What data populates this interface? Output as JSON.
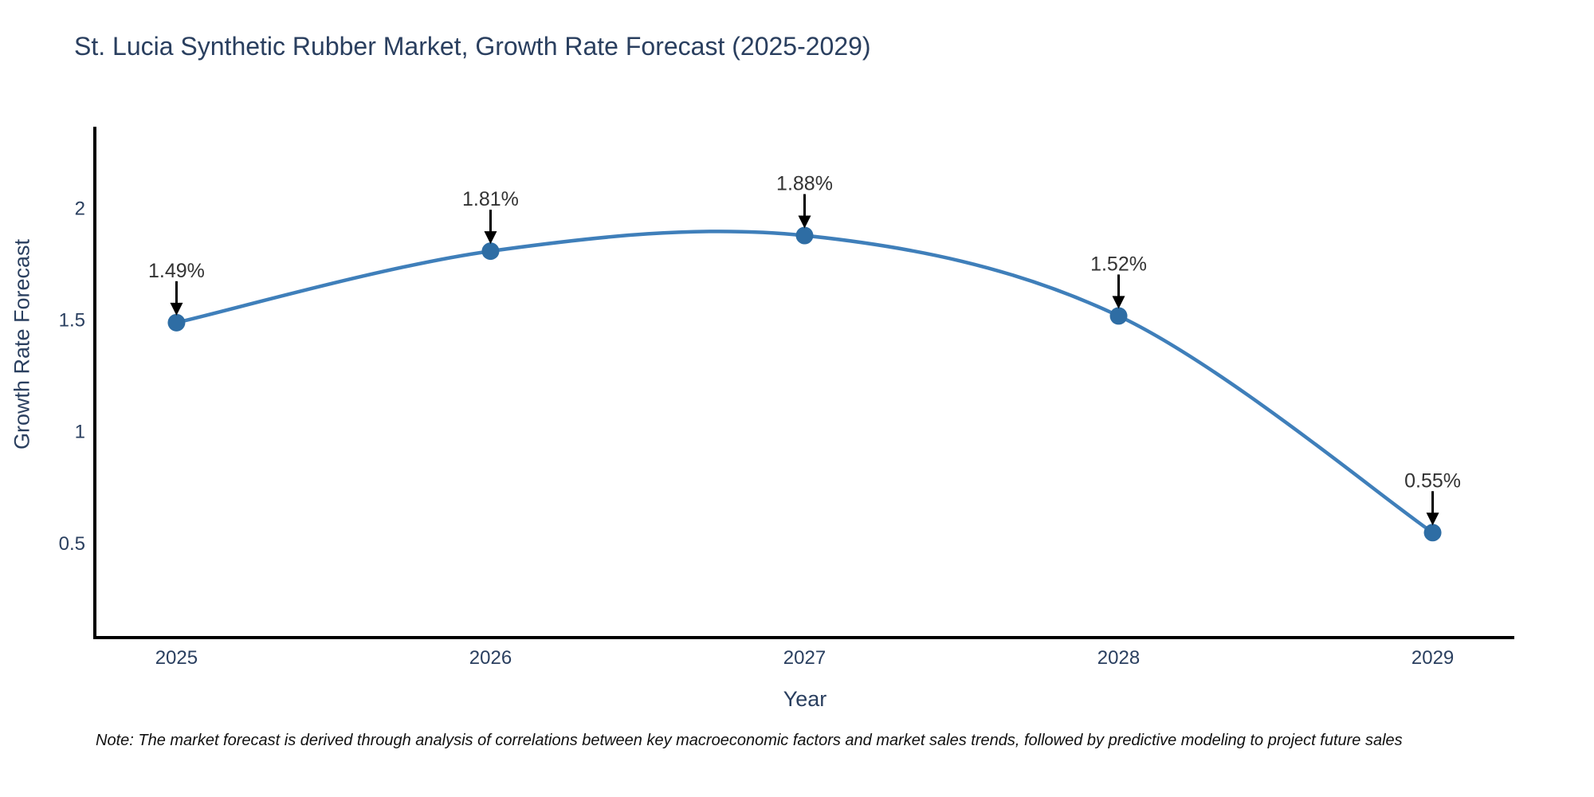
{
  "title": "St. Lucia Synthetic Rubber Market, Growth Rate Forecast (2025-2029)",
  "note": "Note: The market forecast is derived through analysis of correlations between key macroeconomic factors and market sales trends, followed by predictive modeling to project future sales",
  "chart_data": {
    "type": "line",
    "line_shape": "spline",
    "title": "St. Lucia Synthetic Rubber Market, Growth Rate Forecast (2025-2029)",
    "xlabel": "Year",
    "ylabel": "Growth Rate Forecast",
    "x": [
      2025,
      2026,
      2027,
      2028,
      2029
    ],
    "x_labels": [
      "2025",
      "2026",
      "2027",
      "2028",
      "2029"
    ],
    "values": [
      1.49,
      1.81,
      1.88,
      1.52,
      0.55
    ],
    "point_labels": [
      "1.49%",
      "1.81%",
      "1.88%",
      "1.52%",
      "0.55%"
    ],
    "yticks": [
      0.5,
      1,
      1.5,
      2
    ],
    "ytick_labels": [
      "0.5",
      "1",
      "1.5",
      "2"
    ],
    "xlim": [
      2024.74,
      2029.26
    ],
    "ylim": [
      0.08,
      2.36
    ],
    "grid": false,
    "legend": "none",
    "line_color": "#3f7fba",
    "marker_color": "#2e6da4",
    "axis_color": "#000000",
    "annotation_arrow_color": "#000000",
    "title_color": "#2a3f5f",
    "tick_color": "#2a3f5f"
  }
}
